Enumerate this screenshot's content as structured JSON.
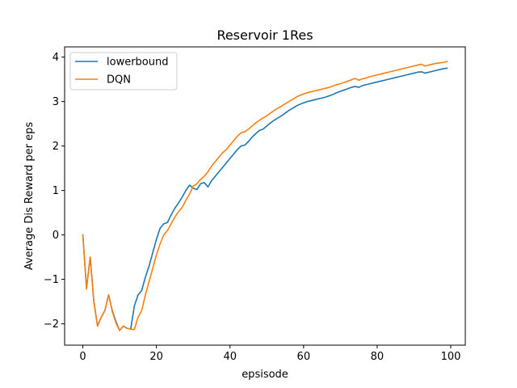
{
  "chart_data": {
    "type": "line",
    "title": "Reservoir 1Res",
    "xlabel": "epsisode",
    "ylabel": "Average Dis Reward per eps",
    "xlim": [
      -4.95,
      103.95
    ],
    "ylim": [
      -2.48,
      4.23
    ],
    "x_ticks": [
      0,
      20,
      40,
      60,
      80,
      100
    ],
    "x_tick_labels": [
      "0",
      "20",
      "40",
      "60",
      "80",
      "100"
    ],
    "y_ticks": [
      -2,
      -1,
      0,
      1,
      2,
      3,
      4
    ],
    "y_tick_labels": [
      "−2",
      "−1",
      "0",
      "1",
      "2",
      "3",
      "4"
    ],
    "grid": false,
    "legend_position": "upper-left",
    "series": [
      {
        "name": "lowerbound",
        "color": "#1f77b4",
        "x": [
          0,
          1,
          2,
          3,
          4,
          5,
          6,
          7,
          8,
          9,
          10,
          11,
          12,
          13,
          14,
          15,
          16,
          17,
          18,
          19,
          20,
          21,
          22,
          23,
          24,
          25,
          26,
          27,
          28,
          29,
          30,
          31,
          32,
          33,
          34,
          35,
          36,
          37,
          38,
          39,
          40,
          41,
          42,
          43,
          44,
          45,
          46,
          47,
          48,
          49,
          50,
          51,
          52,
          53,
          54,
          55,
          56,
          57,
          58,
          59,
          60,
          61,
          62,
          63,
          64,
          65,
          66,
          67,
          68,
          69,
          70,
          71,
          72,
          73,
          74,
          75,
          76,
          77,
          78,
          79,
          80,
          81,
          82,
          83,
          84,
          85,
          86,
          87,
          88,
          89,
          90,
          91,
          92,
          93,
          94,
          95,
          96,
          97,
          98,
          99
        ],
        "y": [
          0.0,
          -1.2,
          -0.5,
          -1.5,
          -2.05,
          -1.85,
          -1.7,
          -1.35,
          -1.7,
          -1.95,
          -2.15,
          -2.05,
          -2.1,
          -2.12,
          -1.6,
          -1.35,
          -1.25,
          -0.95,
          -0.7,
          -0.4,
          -0.1,
          0.15,
          0.25,
          0.28,
          0.45,
          0.6,
          0.72,
          0.85,
          1.0,
          1.12,
          1.05,
          1.02,
          1.15,
          1.18,
          1.08,
          1.22,
          1.32,
          1.42,
          1.52,
          1.62,
          1.72,
          1.82,
          1.92,
          2.0,
          2.02,
          2.1,
          2.2,
          2.28,
          2.35,
          2.38,
          2.45,
          2.52,
          2.58,
          2.63,
          2.68,
          2.74,
          2.8,
          2.85,
          2.9,
          2.94,
          2.97,
          3.0,
          3.02,
          3.04,
          3.06,
          3.08,
          3.1,
          3.13,
          3.16,
          3.2,
          3.23,
          3.26,
          3.29,
          3.32,
          3.34,
          3.32,
          3.36,
          3.38,
          3.4,
          3.42,
          3.44,
          3.46,
          3.48,
          3.5,
          3.52,
          3.54,
          3.56,
          3.58,
          3.6,
          3.62,
          3.64,
          3.66,
          3.67,
          3.64,
          3.66,
          3.68,
          3.7,
          3.72,
          3.74,
          3.75
        ]
      },
      {
        "name": "DQN",
        "color": "#ff7f0e",
        "x": [
          0,
          1,
          2,
          3,
          4,
          5,
          6,
          7,
          8,
          9,
          10,
          11,
          12,
          13,
          14,
          15,
          16,
          17,
          18,
          19,
          20,
          21,
          22,
          23,
          24,
          25,
          26,
          27,
          28,
          29,
          30,
          31,
          32,
          33,
          34,
          35,
          36,
          37,
          38,
          39,
          40,
          41,
          42,
          43,
          44,
          45,
          46,
          47,
          48,
          49,
          50,
          51,
          52,
          53,
          54,
          55,
          56,
          57,
          58,
          59,
          60,
          61,
          62,
          63,
          64,
          65,
          66,
          67,
          68,
          69,
          70,
          71,
          72,
          73,
          74,
          75,
          76,
          77,
          78,
          79,
          80,
          81,
          82,
          83,
          84,
          85,
          86,
          87,
          88,
          89,
          90,
          91,
          92,
          93,
          94,
          95,
          96,
          97,
          98,
          99
        ],
        "y": [
          0.0,
          -1.22,
          -0.5,
          -1.52,
          -2.05,
          -1.85,
          -1.7,
          -1.35,
          -1.72,
          -1.98,
          -2.15,
          -2.05,
          -2.1,
          -2.12,
          -2.13,
          -1.85,
          -1.7,
          -1.35,
          -1.05,
          -0.75,
          -0.45,
          -0.2,
          0.0,
          0.1,
          0.25,
          0.4,
          0.52,
          0.62,
          0.78,
          0.92,
          1.1,
          1.15,
          1.25,
          1.32,
          1.42,
          1.55,
          1.65,
          1.75,
          1.85,
          1.92,
          2.02,
          2.12,
          2.22,
          2.3,
          2.32,
          2.38,
          2.45,
          2.52,
          2.58,
          2.63,
          2.68,
          2.74,
          2.8,
          2.85,
          2.9,
          2.95,
          3.0,
          3.05,
          3.1,
          3.14,
          3.17,
          3.2,
          3.22,
          3.24,
          3.26,
          3.28,
          3.3,
          3.32,
          3.35,
          3.38,
          3.4,
          3.43,
          3.46,
          3.49,
          3.52,
          3.48,
          3.51,
          3.53,
          3.56,
          3.58,
          3.6,
          3.62,
          3.64,
          3.66,
          3.68,
          3.7,
          3.72,
          3.74,
          3.76,
          3.78,
          3.8,
          3.82,
          3.84,
          3.8,
          3.82,
          3.84,
          3.86,
          3.87,
          3.88,
          3.9
        ]
      }
    ]
  }
}
